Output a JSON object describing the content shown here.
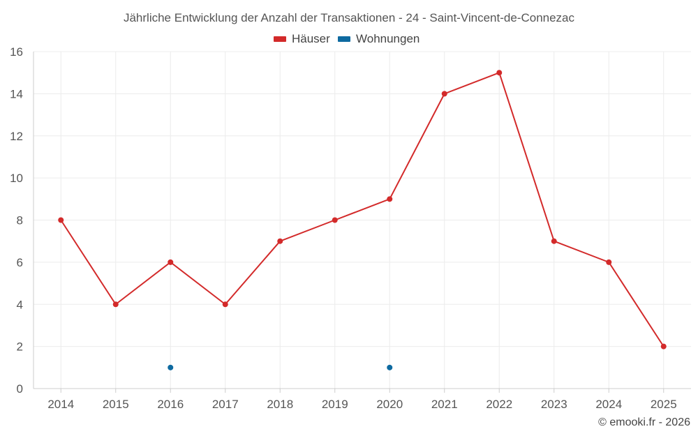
{
  "chart_data": {
    "type": "line",
    "title": "Jährliche Entwicklung der Anzahl der Transaktionen - 24 - Saint-Vincent-de-Connezac",
    "categories": [
      "2014",
      "2015",
      "2016",
      "2017",
      "2018",
      "2019",
      "2020",
      "2021",
      "2022",
      "2023",
      "2024",
      "2025"
    ],
    "series": [
      {
        "name": "Häuser",
        "color": "#d32a2a",
        "values": [
          8,
          4,
          6,
          4,
          7,
          8,
          9,
          14,
          15,
          7,
          6,
          2
        ]
      },
      {
        "name": "Wohnungen",
        "color": "#0e6aa0",
        "values": [
          null,
          null,
          1,
          null,
          null,
          null,
          1,
          null,
          null,
          null,
          null,
          null
        ]
      }
    ],
    "xlabel": "",
    "ylabel": "",
    "ylim": [
      0,
      16
    ],
    "yticks": [
      0,
      2,
      4,
      6,
      8,
      10,
      12,
      14,
      16
    ],
    "grid": true,
    "legend_position": "top-center"
  },
  "credit": "© emooki.fr - 2026"
}
